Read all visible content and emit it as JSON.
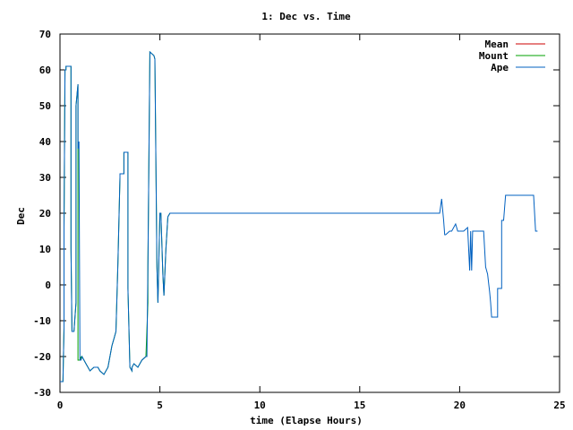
{
  "chart_data": {
    "type": "line",
    "title": "1: Dec vs. Time",
    "xlabel": "time (Elapse Hours)",
    "ylabel": "Dec",
    "xlim": [
      0,
      25
    ],
    "ylim": [
      -30,
      70
    ],
    "xticks": [
      0,
      5,
      10,
      15,
      20,
      25
    ],
    "yticks": [
      -30,
      -20,
      -10,
      0,
      10,
      20,
      30,
      40,
      50,
      60,
      70
    ],
    "grid": false,
    "legend_position": "top-right",
    "series": [
      {
        "name": "Mean",
        "color": "#cc0000",
        "x": [
          18.0,
          19.0
        ],
        "y": [
          20.0,
          20.0
        ]
      },
      {
        "name": "Mount",
        "color": "#00a000",
        "x": [
          0.0,
          0.15,
          0.2,
          0.2,
          0.25,
          0.3,
          0.3,
          0.55,
          0.55,
          0.6,
          0.7,
          0.8,
          0.8,
          0.9,
          0.9,
          1.0,
          1.05,
          1.05,
          1.1,
          1.3,
          1.5,
          1.7,
          1.9,
          2.0,
          2.2,
          2.4,
          2.5,
          2.6,
          2.7,
          2.8,
          2.9,
          3.0,
          3.0,
          3.2,
          3.2,
          3.4,
          3.4,
          3.5,
          3.6,
          3.6,
          3.7,
          3.9,
          4.1,
          4.3,
          4.4,
          4.4,
          4.5,
          4.5,
          4.7,
          4.75,
          4.85,
          4.9,
          5.0,
          5.05,
          5.15,
          5.2,
          5.3,
          5.4,
          5.5,
          18.0,
          19.0
        ],
        "y": [
          -27,
          -27,
          -12,
          16,
          60,
          60,
          61,
          61,
          10,
          -13,
          -13,
          -5,
          50,
          56,
          -21,
          -21,
          -20,
          -21,
          -20,
          -22,
          -24,
          -23,
          -23,
          -24,
          -25,
          -23,
          -20,
          -17,
          -15,
          -13,
          6,
          30,
          31,
          31,
          37,
          37,
          -1,
          -23,
          -24,
          -23,
          -22,
          -23,
          -21,
          -20,
          -5,
          5,
          64,
          65,
          64,
          63,
          5,
          -5,
          20,
          20,
          3,
          -3,
          10,
          19,
          20,
          20,
          20
        ]
      },
      {
        "name": "Ape",
        "color": "#0060c0",
        "x": [
          0.0,
          0.15,
          0.2,
          0.2,
          0.25,
          0.3,
          0.3,
          0.55,
          0.55,
          0.6,
          0.7,
          0.8,
          0.8,
          0.9,
          0.9,
          0.95,
          1.0,
          1.05,
          1.1,
          1.3,
          1.5,
          1.7,
          1.9,
          2.0,
          2.2,
          2.4,
          2.5,
          2.6,
          2.7,
          2.8,
          2.9,
          3.0,
          3.0,
          3.2,
          3.2,
          3.4,
          3.4,
          3.5,
          3.6,
          3.6,
          3.7,
          3.9,
          4.1,
          4.3,
          4.35,
          4.4,
          4.5,
          4.5,
          4.7,
          4.75,
          4.85,
          4.9,
          5.0,
          5.05,
          5.15,
          5.2,
          5.3,
          5.4,
          5.5,
          19.0,
          19.1,
          19.2,
          19.25,
          19.3,
          19.5,
          19.6,
          19.8,
          19.9,
          20.1,
          20.2,
          20.4,
          20.5,
          20.55,
          20.6,
          20.65,
          20.7,
          20.75,
          20.8,
          20.9,
          21.0,
          21.2,
          21.3,
          21.35,
          21.4,
          21.5,
          21.55,
          21.6,
          21.8,
          21.9,
          21.9,
          22.0,
          22.1,
          22.1,
          22.2,
          22.3,
          22.4,
          22.5,
          23.5,
          23.6,
          23.7,
          23.8,
          23.9
        ],
        "y": [
          -27,
          -27,
          -12,
          16,
          60,
          60,
          61,
          61,
          10,
          -13,
          -13,
          -5,
          50,
          56,
          38,
          40,
          -21,
          -21,
          -20,
          -22,
          -24,
          -23,
          -23,
          -24,
          -25,
          -23,
          -20,
          -17,
          -15,
          -13,
          6,
          30,
          31,
          31,
          37,
          37,
          -1,
          -23,
          -24,
          -23,
          -22,
          -23,
          -21,
          -20,
          -20,
          5,
          64,
          65,
          64,
          63,
          5,
          -5,
          20,
          20,
          3,
          -3,
          10,
          19,
          20,
          20,
          24,
          18,
          14,
          14,
          15,
          15,
          17,
          15,
          15,
          15,
          16,
          4,
          15,
          4,
          15,
          15,
          15,
          15,
          15,
          15,
          15,
          5,
          4,
          3,
          -2,
          -5,
          -9,
          -9,
          -9,
          -1,
          -1,
          -1,
          18,
          18,
          25,
          25,
          25,
          25,
          25,
          25,
          15,
          15
        ]
      }
    ]
  }
}
